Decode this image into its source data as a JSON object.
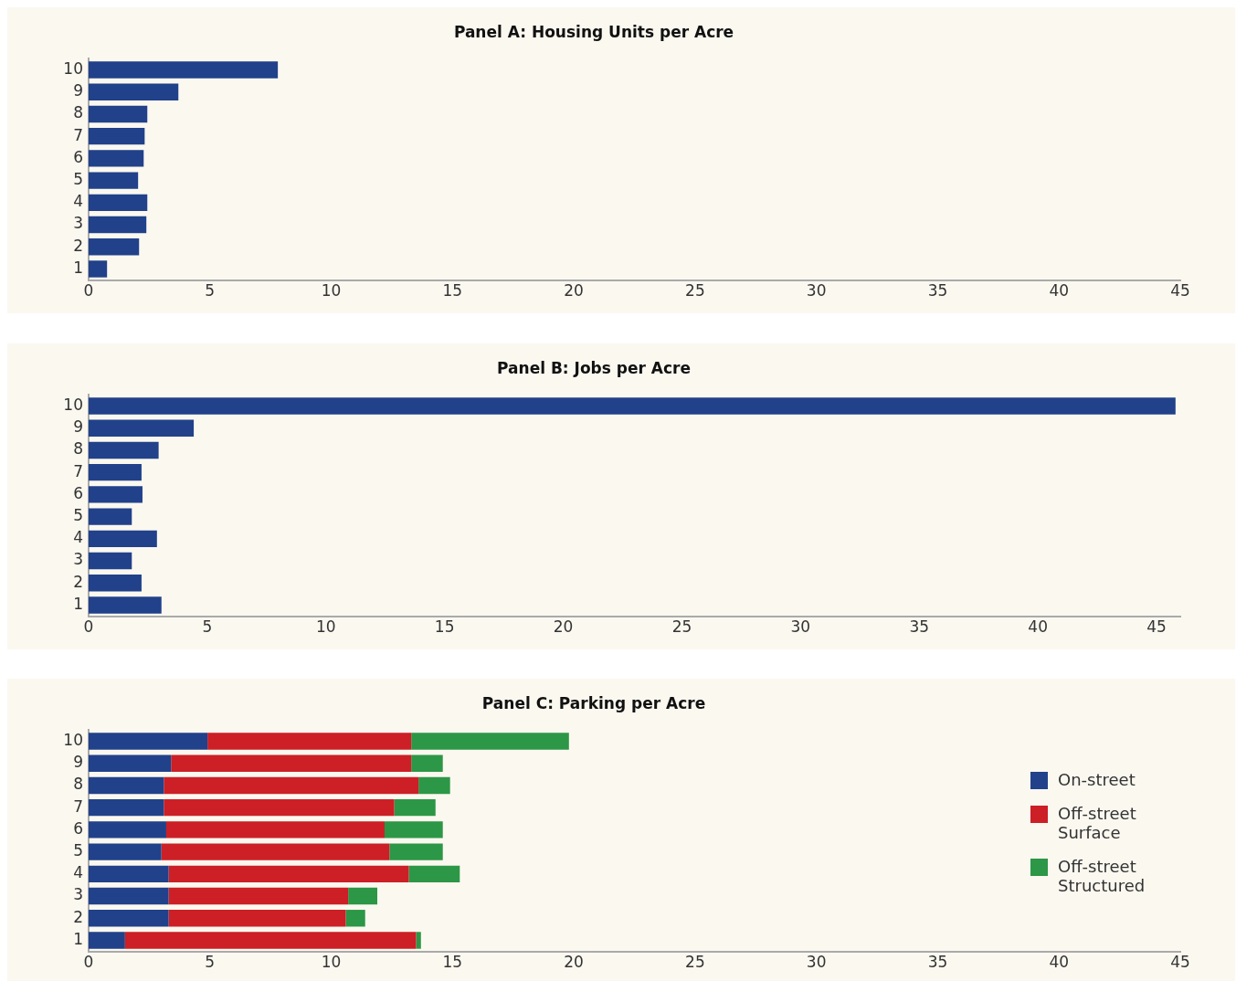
{
  "chart_data": [
    {
      "type": "bar",
      "orientation": "horizontal",
      "title": "Panel A: Housing Units per Acre",
      "categories": [
        "10",
        "9",
        "8",
        "7",
        "6",
        "5",
        "4",
        "3",
        "2",
        "1"
      ],
      "values": [
        7.8,
        3.7,
        2.42,
        2.31,
        2.27,
        2.04,
        2.42,
        2.38,
        2.08,
        0.76
      ],
      "color": "#21418a",
      "xlim": [
        0,
        45
      ],
      "xticks": [
        0,
        5,
        10,
        15,
        20,
        25,
        30,
        35,
        40,
        45
      ],
      "grid": false,
      "legend": false
    },
    {
      "type": "bar",
      "orientation": "horizontal",
      "title": "Panel B: Jobs per Acre",
      "categories": [
        "10",
        "9",
        "8",
        "7",
        "6",
        "5",
        "4",
        "3",
        "2",
        "1"
      ],
      "values": [
        45.8,
        4.43,
        2.95,
        2.23,
        2.27,
        1.82,
        2.88,
        1.82,
        2.23,
        3.07
      ],
      "color": "#21418a",
      "xlim": [
        0,
        46
      ],
      "xticks": [
        0,
        5,
        10,
        15,
        20,
        25,
        30,
        35,
        40,
        45
      ],
      "grid": false,
      "legend": false
    },
    {
      "type": "bar",
      "orientation": "horizontal",
      "stacked": true,
      "title": "Panel C: Parking per Acre",
      "categories": [
        "10",
        "9",
        "8",
        "7",
        "6",
        "5",
        "4",
        "3",
        "2",
        "1"
      ],
      "series": [
        {
          "name": "On-street",
          "color": "#21418a",
          "values": [
            4.9,
            3.4,
            3.1,
            3.1,
            3.2,
            3.0,
            3.3,
            3.3,
            3.3,
            1.5
          ]
        },
        {
          "name": "Off-street Surface",
          "color": "#cc1f26",
          "values": [
            8.4,
            9.9,
            10.5,
            9.5,
            9.0,
            9.4,
            9.9,
            7.4,
            7.3,
            12.0
          ]
        },
        {
          "name": "Off-street Structured",
          "color": "#2c9746",
          "values": [
            6.5,
            1.3,
            1.3,
            1.7,
            2.4,
            2.2,
            2.1,
            1.2,
            0.8,
            0.2
          ]
        }
      ],
      "xlim": [
        0,
        45
      ],
      "xticks": [
        0,
        5,
        10,
        15,
        20,
        25,
        30,
        35,
        40,
        45
      ],
      "grid": false,
      "legend": "right"
    }
  ]
}
